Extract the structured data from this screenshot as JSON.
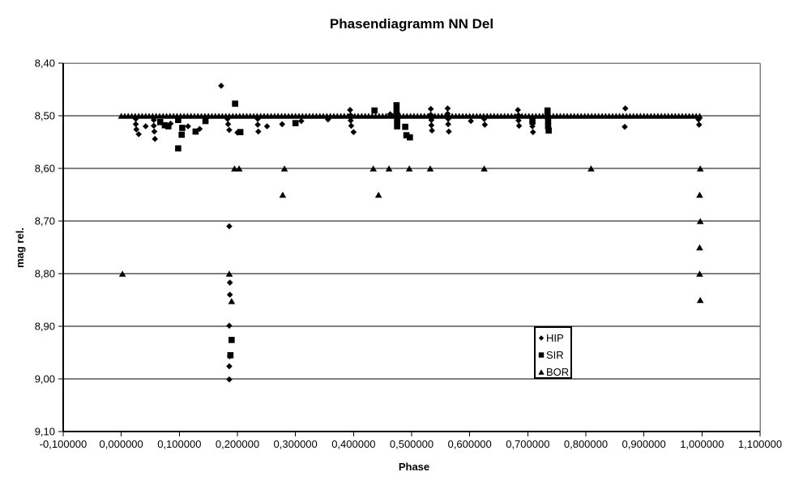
{
  "chart_data": {
    "type": "scatter",
    "title": "Phasendiagramm NN Del",
    "xlabel": "Phase",
    "ylabel": "mag rel.",
    "xlim": [
      -0.1,
      1.1
    ],
    "ylim": [
      8.4,
      9.1
    ],
    "y_axis_inverted_magnitude": true,
    "grid": "horizontal-only",
    "legend_position": "inside-right",
    "x_tick_values": [
      -0.1,
      0.0,
      0.1,
      0.2,
      0.3,
      0.4,
      0.5,
      0.6,
      0.7,
      0.8,
      0.9,
      1.0,
      1.1
    ],
    "x_tick_labels": [
      "-0,100000",
      "0,000000",
      "0,100000",
      "0,200000",
      "0,300000",
      "0,400000",
      "0,500000",
      "0,600000",
      "0,700000",
      "0,800000",
      "0,900000",
      "1,000000",
      "1,100000"
    ],
    "y_tick_values": [
      8.4,
      8.5,
      8.6,
      8.7,
      8.8,
      8.9,
      9.0,
      9.1
    ],
    "y_tick_labels": [
      "8,40",
      "8,50",
      "8,60",
      "8,70",
      "8,80",
      "8,90",
      "9,00",
      "9,10"
    ],
    "colors": {
      "marker": "#000000",
      "grid": "#000000",
      "border": "#808080",
      "background": "#ffffff"
    },
    "series": [
      {
        "name": "HIP",
        "marker": "diamond",
        "points": [
          [
            0.172,
            8.443
          ],
          [
            0.025,
            8.506
          ],
          [
            0.025,
            8.516
          ],
          [
            0.026,
            8.526
          ],
          [
            0.03,
            8.535
          ],
          [
            0.042,
            8.52
          ],
          [
            0.056,
            8.508
          ],
          [
            0.056,
            8.519
          ],
          [
            0.057,
            8.53
          ],
          [
            0.058,
            8.544
          ],
          [
            0.085,
            8.515
          ],
          [
            0.115,
            8.52
          ],
          [
            0.135,
            8.525
          ],
          [
            0.183,
            8.506
          ],
          [
            0.184,
            8.516
          ],
          [
            0.186,
            8.527
          ],
          [
            0.2,
            8.532
          ],
          [
            0.235,
            8.506
          ],
          [
            0.235,
            8.517
          ],
          [
            0.236,
            8.53
          ],
          [
            0.251,
            8.52
          ],
          [
            0.277,
            8.516
          ],
          [
            0.31,
            8.51
          ],
          [
            0.356,
            8.507
          ],
          [
            0.394,
            8.489
          ],
          [
            0.395,
            8.499
          ],
          [
            0.395,
            8.509
          ],
          [
            0.396,
            8.519
          ],
          [
            0.4,
            8.531
          ],
          [
            0.463,
            8.497
          ],
          [
            0.533,
            8.487
          ],
          [
            0.533,
            8.498
          ],
          [
            0.534,
            8.508
          ],
          [
            0.534,
            8.518
          ],
          [
            0.535,
            8.528
          ],
          [
            0.562,
            8.486
          ],
          [
            0.562,
            8.496
          ],
          [
            0.563,
            8.506
          ],
          [
            0.563,
            8.516
          ],
          [
            0.564,
            8.53
          ],
          [
            0.602,
            8.51
          ],
          [
            0.625,
            8.506
          ],
          [
            0.626,
            8.517
          ],
          [
            0.683,
            8.489
          ],
          [
            0.684,
            8.499
          ],
          [
            0.684,
            8.509
          ],
          [
            0.685,
            8.519
          ],
          [
            0.708,
            8.52
          ],
          [
            0.709,
            8.531
          ],
          [
            0.868,
            8.486
          ],
          [
            0.867,
            8.521
          ],
          [
            0.994,
            8.507
          ],
          [
            0.995,
            8.517
          ],
          [
            0.186,
            8.71
          ],
          [
            0.187,
            8.817
          ],
          [
            0.187,
            8.84
          ],
          [
            0.186,
            8.899
          ],
          [
            0.187,
            8.957
          ],
          [
            0.186,
            8.976
          ],
          [
            0.186,
            9.001
          ]
        ]
      },
      {
        "name": "SIR",
        "marker": "square",
        "points": [
          [
            0.067,
            8.512
          ],
          [
            0.075,
            8.518
          ],
          [
            0.081,
            8.52
          ],
          [
            0.098,
            8.508
          ],
          [
            0.105,
            8.523
          ],
          [
            0.104,
            8.536
          ],
          [
            0.098,
            8.562
          ],
          [
            0.128,
            8.53
          ],
          [
            0.145,
            8.51
          ],
          [
            0.196,
            8.477
          ],
          [
            0.205,
            8.531
          ],
          [
            0.3,
            8.514
          ],
          [
            0.436,
            8.49
          ],
          [
            0.474,
            8.48
          ],
          [
            0.474,
            8.49
          ],
          [
            0.475,
            8.5
          ],
          [
            0.475,
            8.51
          ],
          [
            0.475,
            8.52
          ],
          [
            0.489,
            8.521
          ],
          [
            0.491,
            8.537
          ],
          [
            0.497,
            8.541
          ],
          [
            0.708,
            8.511
          ],
          [
            0.734,
            8.49
          ],
          [
            0.734,
            8.5
          ],
          [
            0.735,
            8.51
          ],
          [
            0.735,
            8.52
          ],
          [
            0.736,
            8.528
          ],
          [
            0.19,
            8.926
          ],
          [
            0.188,
            8.955
          ]
        ]
      },
      {
        "name": "BOR",
        "marker": "triangle",
        "band": {
          "y": 8.5,
          "x_start": 0.0,
          "x_end": 0.997,
          "step": 0.006
        },
        "points": [
          [
            0.195,
            8.6
          ],
          [
            0.203,
            8.6
          ],
          [
            0.281,
            8.6
          ],
          [
            0.434,
            8.6
          ],
          [
            0.461,
            8.6
          ],
          [
            0.496,
            8.6
          ],
          [
            0.532,
            8.6
          ],
          [
            0.625,
            8.6
          ],
          [
            0.809,
            8.6
          ],
          [
            0.997,
            8.6
          ],
          [
            0.278,
            8.65
          ],
          [
            0.443,
            8.65
          ],
          [
            0.996,
            8.65
          ],
          [
            0.997,
            8.7
          ],
          [
            0.996,
            8.75
          ],
          [
            0.002,
            8.8
          ],
          [
            0.186,
            8.8
          ],
          [
            0.996,
            8.8
          ],
          [
            0.19,
            8.852
          ],
          [
            0.997,
            8.85
          ]
        ]
      }
    ],
    "legend": {
      "items": [
        {
          "label": "HIP",
          "marker": "diamond"
        },
        {
          "label": "SIR",
          "marker": "square"
        },
        {
          "label": "BOR",
          "marker": "triangle"
        }
      ]
    }
  }
}
